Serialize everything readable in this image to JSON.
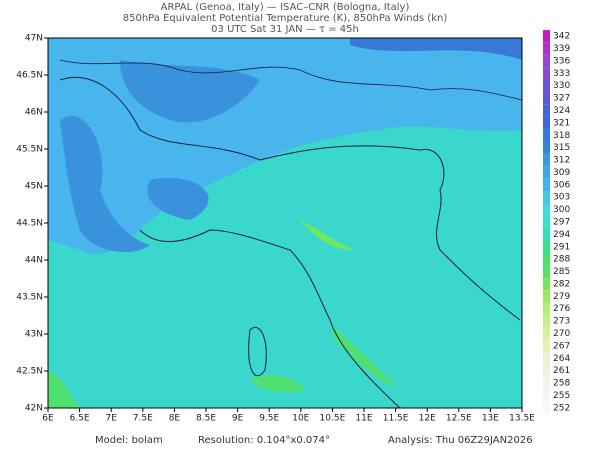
{
  "header": {
    "line1": "ARPAL (Genoa, Italy)  —  ISAC–CNR (Bologna, Italy)",
    "line2": "850hPa Equivalent Potential Temperature (K), 850hPa Winds (kn)",
    "line3": "03 UTC Sat 31 JAN  —  τ = 45h"
  },
  "lat_labels": [
    "47N",
    "46.5N",
    "46N",
    "45.5N",
    "45N",
    "44.5N",
    "44N",
    "43.5N",
    "43N",
    "42.5N",
    "42N"
  ],
  "lon_labels": [
    "6E",
    "6.5E",
    "7E",
    "7.5E",
    "8E",
    "8.5E",
    "9E",
    "9.5E",
    "10E",
    "10.5E",
    "11E",
    "11.5E",
    "12E",
    "12.5E",
    "13E",
    "13.5E"
  ],
  "colorbar": {
    "levels": [
      342,
      339,
      336,
      333,
      330,
      327,
      324,
      321,
      318,
      315,
      312,
      309,
      306,
      303,
      300,
      297,
      294,
      291,
      288,
      285,
      282,
      279,
      276,
      273,
      270,
      267,
      264,
      261,
      258,
      255,
      252
    ],
    "colors": [
      "#c020c0",
      "#b030c8",
      "#a040d0",
      "#8848d8",
      "#7050d8",
      "#5858d8",
      "#4860d8",
      "#3c68dc",
      "#3478e0",
      "#3088d8",
      "#3a98e0",
      "#3aa8e8",
      "#40b4ec",
      "#48c4ec",
      "#40d8dc",
      "#38e0c8",
      "#30e0b0",
      "#38e090",
      "#48e070",
      "#58e060",
      "#78e858",
      "#98ec60",
      "#b0f070",
      "#c8f088",
      "#d8f0a0",
      "#e4f0b8",
      "#ecf0cc",
      "#f0f0dc",
      "#f4f4e8",
      "#f6f6f0",
      "#f8f8f8"
    ]
  },
  "footer": {
    "model": "Model: bolam",
    "resolution": "Resolution: 0.104°x0.074°",
    "analysis": "Analysis: Thu 06Z29JAN2026"
  }
}
